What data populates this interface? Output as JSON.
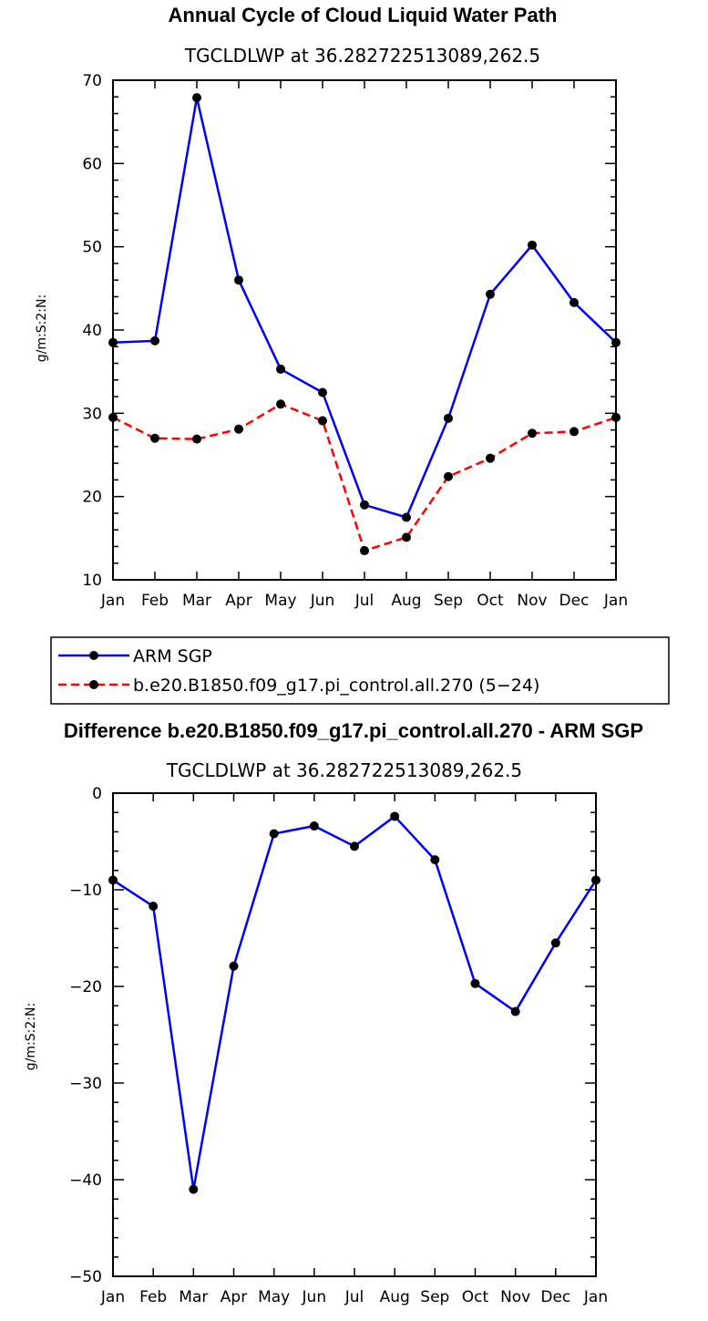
{
  "chart_data": [
    {
      "type": "line",
      "title": "Annual Cycle of Cloud Liquid Water Path",
      "subtitle": "TGCLDLWP  at 36.282722513089,262.5",
      "ylabel": "g/m:S:2:N:",
      "xlabel": "",
      "categories": [
        "Jan",
        "Feb",
        "Mar",
        "Apr",
        "May",
        "Jun",
        "Jul",
        "Aug",
        "Sep",
        "Oct",
        "Nov",
        "Dec",
        "Jan"
      ],
      "ylim": [
        10,
        70
      ],
      "yticks": [
        10,
        20,
        30,
        40,
        50,
        60,
        70
      ],
      "ytick_labels": [
        "10",
        "20",
        "30",
        "40",
        "50",
        "60",
        "70"
      ],
      "series": [
        {
          "name": "ARM SGP",
          "color": "#0000ff",
          "dash": "solid",
          "values": [
            38.5,
            38.7,
            67.9,
            46.0,
            35.3,
            32.5,
            19.0,
            17.5,
            29.4,
            44.3,
            50.2,
            43.3,
            38.5
          ]
        },
        {
          "name": "b.e20.B1850.f09_g17.pi_control.all.270 (5−24)",
          "color": "#ff0000",
          "dash": "dashed",
          "values": [
            29.5,
            27.0,
            26.9,
            28.1,
            31.1,
            29.1,
            13.5,
            15.1,
            22.4,
            24.6,
            27.6,
            27.8,
            29.5
          ]
        }
      ],
      "legend": "below"
    },
    {
      "type": "line",
      "title": "Difference b.e20.B1850.f09_g17.pi_control.all.270 - ARM SGP",
      "subtitle": "TGCLDLWP  at 36.282722513089,262.5",
      "ylabel": "g/m:S:2:N:",
      "xlabel": "",
      "categories": [
        "Jan",
        "Feb",
        "Mar",
        "Apr",
        "May",
        "Jun",
        "Jul",
        "Aug",
        "Sep",
        "Oct",
        "Nov",
        "Dec",
        "Jan"
      ],
      "ylim": [
        -50,
        0
      ],
      "yticks": [
        -50,
        -40,
        -30,
        -20,
        -10,
        0
      ],
      "ytick_labels": [
        "−50",
        "−40",
        "−30",
        "−20",
        "−10",
        "0"
      ],
      "series": [
        {
          "name": "Difference",
          "color": "#0000ff",
          "dash": "solid",
          "values": [
            -9.0,
            -11.7,
            -41.0,
            -17.9,
            -4.2,
            -3.4,
            -5.5,
            -2.4,
            -6.9,
            -19.7,
            -22.6,
            -15.5,
            -9.0
          ]
        }
      ]
    }
  ]
}
